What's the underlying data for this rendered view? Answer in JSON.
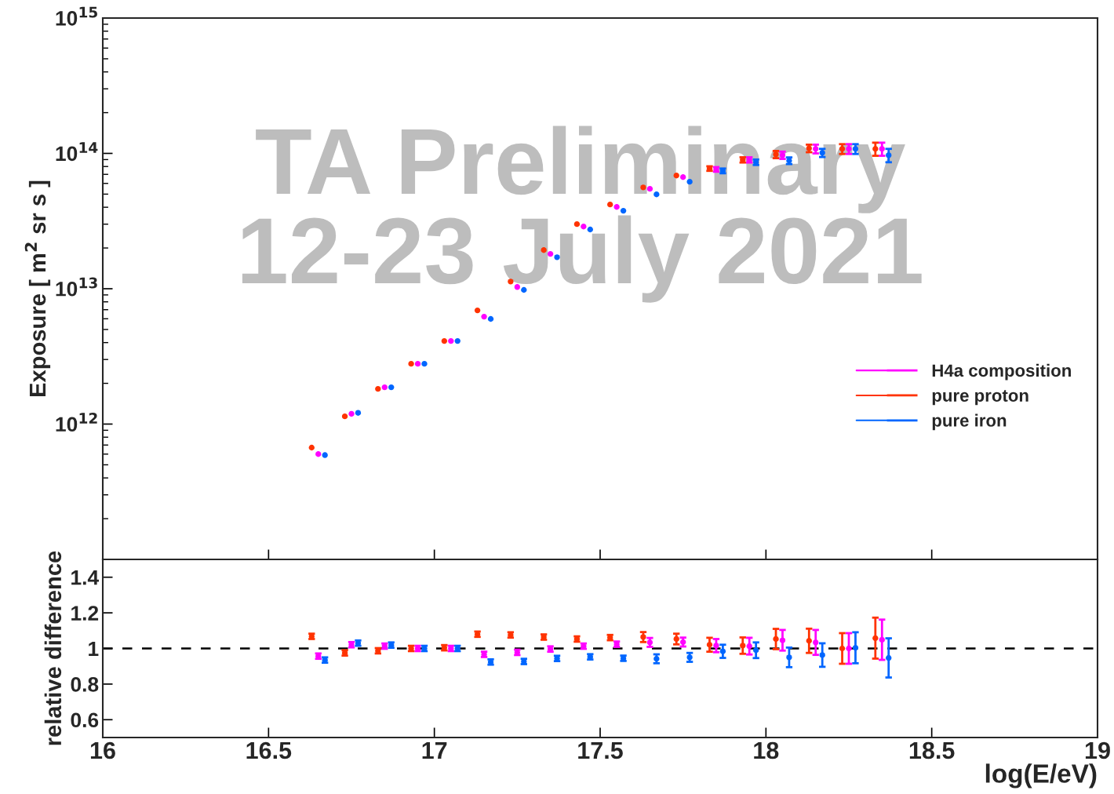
{
  "chart_data": [
    {
      "type": "scatter",
      "ylabel": "Exposure [ m$^{2}$ sr s ]",
      "log": "y",
      "grid": false,
      "legend": "right",
      "marker": "circle",
      "tick_labels": "y",
      "xlim": [
        16,
        19
      ],
      "xticks": [
        {
          "value": 16.5,
          "label": null
        },
        {
          "value": 17,
          "label": null
        },
        {
          "value": 17.5,
          "label": null
        },
        {
          "value": 18,
          "label": null
        },
        {
          "value": 18.5,
          "label": null
        }
      ],
      "ylim": [
        100000000000.0,
        1000000000000000.0
      ],
      "yticks": [
        {
          "value": 1000000000000.0,
          "label": "10$^{12}$"
        },
        {
          "value": 10000000000000.0,
          "label": "10$^{13}$"
        },
        {
          "value": 100000000000000.0,
          "label": "10$^{14}$"
        },
        {
          "value": 1000000000000000.0,
          "label": "10$^{15}$"
        }
      ],
      "annotations": [
        "TA Preliminary",
        "12-23 July 2021"
      ],
      "series": [
        {
          "name": "H4a composition",
          "color": "#ff00ff",
          "x": [
            16.65,
            16.75,
            16.85,
            16.95,
            17.05,
            17.15,
            17.25,
            17.35,
            17.45,
            17.55,
            17.65,
            17.75,
            17.85,
            17.95,
            18.05,
            18.15,
            18.25,
            18.35
          ],
          "values": [
            600000000000.0,
            1190000000000.0,
            1870000000000.0,
            2790000000000.0,
            4110000000000.0,
            6220000000000.0,
            10300000000000.0,
            18100000000000.0,
            28800000000000.0,
            40200000000000.0,
            54700000000000.0,
            66800000000000.0,
            76200000000000.0,
            89600000000000.0,
            97000000000000.0,
            108000000000000.0,
            108000000000000.0,
            108000000000000.0
          ],
          "errors": [
            null,
            null,
            null,
            null,
            null,
            null,
            null,
            null,
            null,
            null,
            null,
            null,
            3000000000000.0,
            4000000000000.0,
            6000000000000.0,
            8000000000000.0,
            9000000000000.0,
            12000000000000.0
          ]
        },
        {
          "name": "pure proton",
          "color": "#ff3300",
          "x": [
            16.63,
            16.73,
            16.83,
            16.93,
            17.03,
            17.13,
            17.23,
            17.33,
            17.43,
            17.53,
            17.63,
            17.73,
            17.83,
            17.93,
            18.03,
            18.13,
            18.23,
            18.33
          ],
          "values": [
            670000000000.0,
            1140000000000.0,
            1820000000000.0,
            2790000000000.0,
            4110000000000.0,
            6920000000000.0,
            11300000000000.0,
            19300000000000.0,
            30000000000000.0,
            41900000000000.0,
            56100000000000.0,
            68600000000000.0,
            77300000000000.0,
            89600000000000.0,
            98200000000000.0,
            109000000000000.0,
            108000000000000.0,
            108000000000000.0
          ],
          "errors": [
            null,
            null,
            null,
            null,
            null,
            null,
            null,
            null,
            null,
            null,
            null,
            null,
            3000000000000.0,
            4000000000000.0,
            6000000000000.0,
            7000000000000.0,
            9000000000000.0,
            12000000000000.0
          ]
        },
        {
          "name": "pure iron",
          "color": "#0066ff",
          "x": [
            16.67,
            16.77,
            16.87,
            16.97,
            17.07,
            17.17,
            17.27,
            17.37,
            17.47,
            17.57,
            17.67,
            17.77,
            17.87,
            17.97,
            18.07,
            18.17,
            18.27,
            18.37
          ],
          "values": [
            590000000000.0,
            1210000000000.0,
            1870000000000.0,
            2790000000000.0,
            4110000000000.0,
            5980000000000.0,
            9800000000000.0,
            17100000000000.0,
            27400000000000.0,
            37700000000000.0,
            49800000000000.0,
            61700000000000.0,
            74300000000000.0,
            86100000000000.0,
            88400000000000.0,
            101000000000000.0,
            108000000000000.0,
            97000000000000.0
          ],
          "errors": [
            null,
            null,
            null,
            null,
            null,
            null,
            null,
            null,
            null,
            null,
            null,
            null,
            3000000000000.0,
            4000000000000.0,
            5000000000000.0,
            7000000000000.0,
            9000000000000.0,
            11000000000000.0
          ]
        }
      ]
    },
    {
      "type": "scatter",
      "ylabel": "relative difference",
      "xlabel": "log(E/eV)",
      "grid": false,
      "legend": false,
      "marker": "circle",
      "xlim": [
        16,
        19
      ],
      "xticks": [
        16,
        16.5,
        17,
        17.5,
        18,
        18.5,
        19
      ],
      "ylim": [
        0.5,
        1.5
      ],
      "yticks": [
        0.6,
        0.8,
        1,
        1.2,
        1.4
      ],
      "ref_lines": [
        {
          "axis": "y",
          "value": 1,
          "color": "#000000",
          "line_style": "dashed"
        }
      ],
      "series": [
        {
          "color": "#ff00ff",
          "x": [
            16.65,
            16.75,
            16.85,
            16.95,
            17.05,
            17.15,
            17.25,
            17.35,
            17.45,
            17.55,
            17.65,
            17.75,
            17.85,
            17.95,
            18.05,
            18.15,
            18.25,
            18.35
          ],
          "values": [
            0.957,
            1.021,
            1.013,
            1.0,
            1.0,
            0.967,
            0.978,
            0.997,
            1.013,
            1.024,
            1.034,
            1.036,
            1.016,
            1.013,
            1.046,
            1.034,
            1.0,
            1.049
          ],
          "errors": [
            0.015,
            0.015,
            0.015,
            0.015,
            0.015,
            0.015,
            0.015,
            0.015,
            0.015,
            0.015,
            0.025,
            0.025,
            0.037,
            0.047,
            0.058,
            0.07,
            0.086,
            0.113
          ]
        },
        {
          "color": "#ff3300",
          "x": [
            16.63,
            16.73,
            16.83,
            16.93,
            17.03,
            17.13,
            17.23,
            17.33,
            17.43,
            17.53,
            17.63,
            17.73,
            17.83,
            17.93,
            18.03,
            18.13,
            18.23,
            18.33
          ],
          "values": [
            1.068,
            0.975,
            0.987,
            1.0,
            1.004,
            1.08,
            1.076,
            1.064,
            1.053,
            1.061,
            1.064,
            1.053,
            1.021,
            1.016,
            1.053,
            1.043,
            1.0,
            1.058
          ],
          "errors": [
            0.015,
            0.015,
            0.015,
            0.015,
            0.015,
            0.015,
            0.015,
            0.015,
            0.015,
            0.015,
            0.028,
            0.03,
            0.039,
            0.046,
            0.057,
            0.068,
            0.086,
            0.115
          ]
        },
        {
          "color": "#0066ff",
          "x": [
            16.67,
            16.77,
            16.87,
            16.97,
            17.07,
            17.17,
            17.27,
            17.37,
            17.47,
            17.57,
            17.67,
            17.77,
            17.87,
            17.97,
            18.07,
            18.17,
            18.27,
            18.37
          ],
          "values": [
            0.935,
            1.03,
            1.019,
            1.0,
            1.0,
            0.924,
            0.927,
            0.944,
            0.953,
            0.945,
            0.942,
            0.95,
            0.984,
            0.99,
            0.95,
            0.963,
            1.004,
            0.947
          ],
          "errors": [
            0.015,
            0.015,
            0.015,
            0.015,
            0.015,
            0.015,
            0.015,
            0.015,
            0.015,
            0.015,
            0.025,
            0.025,
            0.037,
            0.044,
            0.055,
            0.066,
            0.087,
            0.11
          ]
        }
      ]
    }
  ]
}
